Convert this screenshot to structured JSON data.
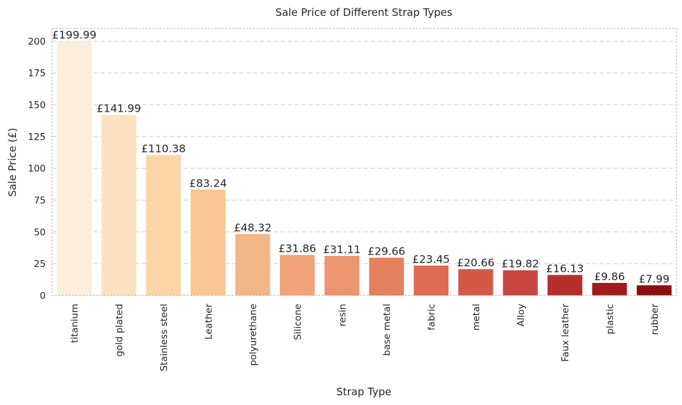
{
  "chart_data": {
    "type": "bar",
    "title": "Sale Price of Different Strap Types",
    "xlabel": "Strap Type",
    "ylabel": "Sale Price (£)",
    "ylim": [
      0,
      210
    ],
    "yticks": [
      0,
      25,
      50,
      75,
      100,
      125,
      150,
      175,
      200
    ],
    "grid": "horizontal dashed",
    "categories": [
      "titanium",
      "gold plated",
      "Stainless steel",
      "Leather",
      "polyurethane",
      "Silicone",
      "resin",
      "base metal",
      "fabric",
      "metal",
      "Alloy",
      "Faux leather",
      "plastic",
      "rubber"
    ],
    "values": [
      199.99,
      141.99,
      110.38,
      83.24,
      48.32,
      31.86,
      31.11,
      29.66,
      23.45,
      20.66,
      19.82,
      16.13,
      9.86,
      7.99
    ],
    "labels": [
      "£199.99",
      "£141.99",
      "£110.38",
      "£83.24",
      "£48.32",
      "£31.86",
      "£31.11",
      "£29.66",
      "£23.45",
      "£20.66",
      "£19.82",
      "£16.13",
      "£9.86",
      "£7.99"
    ],
    "colors": [
      "#fdeedc",
      "#fde2c0",
      "#fbd4a8",
      "#f8c692",
      "#f4b685",
      "#f1a47a",
      "#ed9470",
      "#e68160",
      "#de6b53",
      "#d45848",
      "#c84640",
      "#b52f2b",
      "#a21b1b",
      "#8c1010"
    ]
  }
}
